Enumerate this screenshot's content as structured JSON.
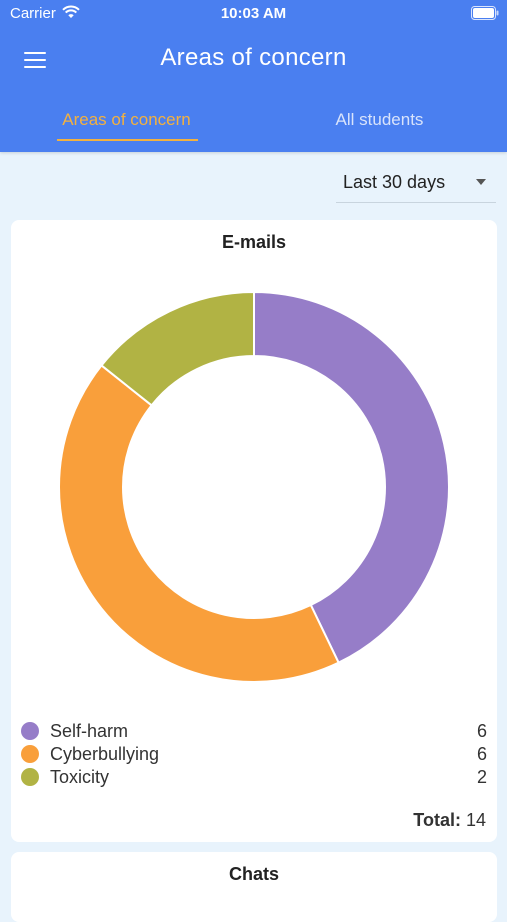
{
  "status_bar": {
    "carrier": "Carrier",
    "time": "10:03 AM"
  },
  "header": {
    "title": "Areas of concern",
    "menu_icon": "hamburger-menu-icon",
    "background_color": "#4a7ff0"
  },
  "tabs": [
    {
      "label": "Areas of concern",
      "active": true
    },
    {
      "label": "All students",
      "active": false
    }
  ],
  "filter": {
    "selected": "Last 30 days"
  },
  "cards": {
    "emails": {
      "title": "E-mails",
      "total_label": "Total:",
      "total_value": "14"
    },
    "chats": {
      "title": "Chats"
    }
  },
  "chart_data": {
    "type": "pie",
    "title": "E-mails",
    "donut": true,
    "legend_position": "bottom",
    "series": [
      {
        "name": "Self-harm",
        "value": 6,
        "color": "#967dc8"
      },
      {
        "name": "Cyberbullying",
        "value": 6,
        "color": "#f99f3b"
      },
      {
        "name": "Toxicity",
        "value": 2,
        "color": "#b1b344"
      }
    ]
  }
}
